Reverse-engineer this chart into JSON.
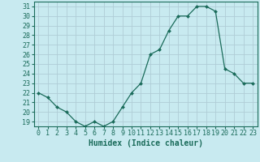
{
  "x": [
    0,
    1,
    2,
    3,
    4,
    5,
    6,
    7,
    8,
    9,
    10,
    11,
    12,
    13,
    14,
    15,
    16,
    17,
    18,
    19,
    20,
    21,
    22,
    23
  ],
  "y": [
    22,
    21.5,
    20.5,
    20,
    19,
    18.5,
    19,
    18.5,
    19,
    20.5,
    22,
    23,
    26,
    26.5,
    28.5,
    30,
    30,
    31,
    31,
    30.5,
    24.5,
    24,
    23,
    23
  ],
  "line_color": "#1a6b5a",
  "marker_color": "#1a6b5a",
  "bg_color": "#c8eaf0",
  "grid_color": "#b0cdd6",
  "xlabel": "Humidex (Indice chaleur)",
  "ylabel_ticks": [
    19,
    20,
    21,
    22,
    23,
    24,
    25,
    26,
    27,
    28,
    29,
    30,
    31
  ],
  "ylim": [
    18.5,
    31.5
  ],
  "xlim": [
    -0.5,
    23.5
  ],
  "tick_color": "#1a6b5a",
  "label_color": "#1a6b5a",
  "font_size": 6.0
}
